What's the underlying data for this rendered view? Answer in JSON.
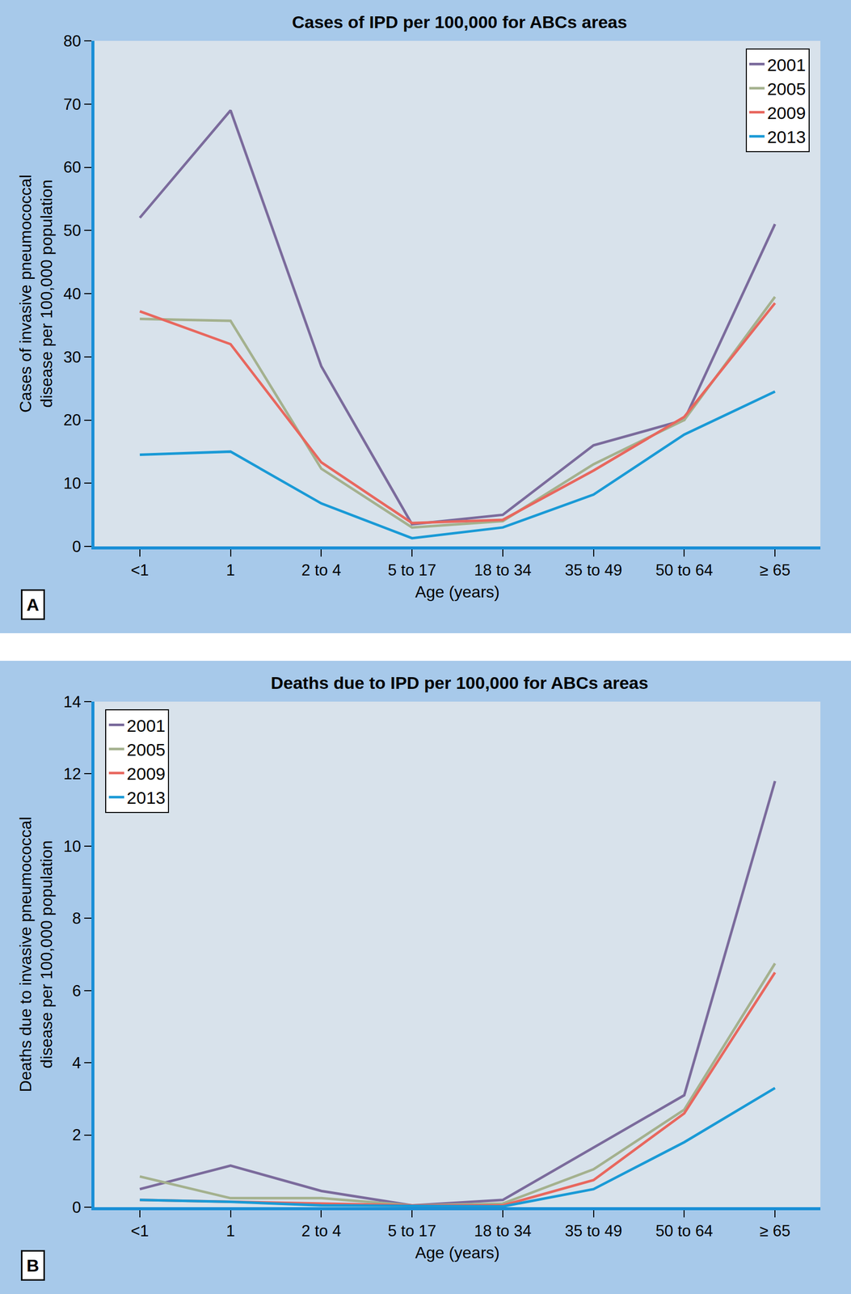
{
  "chart_data": [
    {
      "type": "line",
      "title": "Cases of IPD per 100,000 for ABCs areas",
      "x_label": "Age (years)",
      "y_label": "Cases of invasive pneumococcal disease per 100,000 population",
      "annotations": [
        "A"
      ],
      "categories": [
        "<1",
        "1",
        "2 to 4",
        "5 to 17",
        "18 to 34",
        "35 to 49",
        "50 to 64",
        "≥ 65"
      ],
      "series": [
        {
          "name": "2001",
          "color": "#7b6b9c",
          "values": [
            52,
            69,
            28.5,
            3.5,
            5,
            16,
            20,
            51
          ]
        },
        {
          "name": "2005",
          "color": "#a4b18e",
          "values": [
            36,
            35.7,
            12.3,
            3,
            4,
            13,
            20,
            39.5
          ]
        },
        {
          "name": "2009",
          "color": "#e8675e",
          "values": [
            37.2,
            32,
            13.3,
            3.7,
            4.2,
            12,
            20.5,
            38.5
          ]
        },
        {
          "name": "2013",
          "color": "#1a9ad6",
          "values": [
            14.5,
            15,
            6.8,
            1.3,
            3,
            8.2,
            17.7,
            24.5
          ]
        }
      ],
      "ylim": [
        0,
        80
      ],
      "yticks": [
        0,
        10,
        20,
        30,
        40,
        50,
        60,
        70,
        80
      ],
      "legend": "upper right",
      "grid": false
    },
    {
      "type": "line",
      "title": "Deaths due to IPD per 100,000 for ABCs areas",
      "x_label": "Age (years)",
      "y_label": "Deaths due to invasive pneumococcal disease per 100,000 population",
      "annotations": [
        "B"
      ],
      "categories": [
        "<1",
        "1",
        "2 to 4",
        "5 to 17",
        "18 to 34",
        "35 to 49",
        "50 to 64",
        "≥ 65"
      ],
      "series": [
        {
          "name": "2001",
          "color": "#7b6b9c",
          "values": [
            0.5,
            1.15,
            0.45,
            0.05,
            0.2,
            1.65,
            3.1,
            11.8
          ]
        },
        {
          "name": "2005",
          "color": "#a4b18e",
          "values": [
            0.85,
            0.25,
            0.25,
            0.05,
            0.1,
            1.05,
            2.7,
            6.75
          ]
        },
        {
          "name": "2009",
          "color": "#e8675e",
          "values": [
            0.2,
            0.15,
            0.1,
            0.05,
            0.05,
            0.75,
            2.6,
            6.5
          ]
        },
        {
          "name": "2013",
          "color": "#1a9ad6",
          "values": [
            0.2,
            0.15,
            0.05,
            0.03,
            0.02,
            0.5,
            1.8,
            3.3
          ]
        }
      ],
      "ylim": [
        0,
        14
      ],
      "yticks": [
        0,
        2,
        4,
        6,
        8,
        10,
        12,
        14
      ],
      "legend": "upper left",
      "grid": false
    }
  ]
}
